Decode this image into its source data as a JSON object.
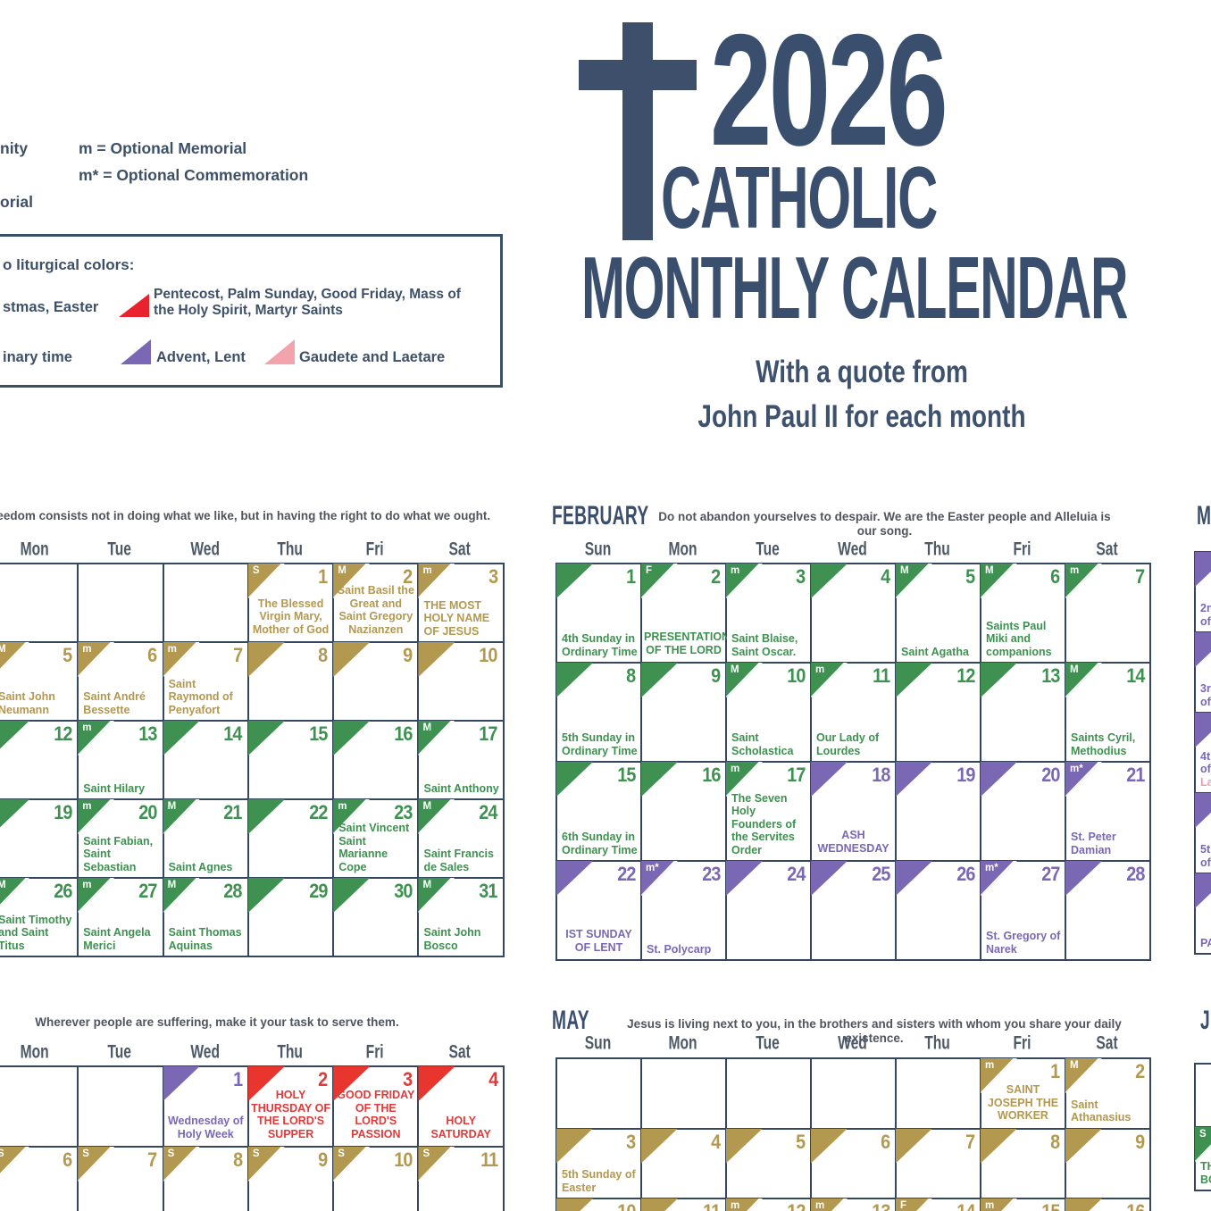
{
  "title": {
    "year": "2026",
    "brand_line1": "CATHOLIC",
    "brand_line2": "MONTHLY CALENDAR",
    "subtitle_line1": "With a quote from",
    "subtitle_line2": "John Paul II for each month"
  },
  "legend": {
    "frag_solemnity": "nity",
    "optional_memorial": "m = Optional Memorial",
    "optional_commemoration": "m* = Optional Commemoration",
    "frag_memorial": "orial",
    "colors_heading": "o liturgical colors:",
    "row1_left_fragment": "stmas, Easter",
    "row1_red_label": "Pentecost, Palm Sunday, Good Friday, Mass of the Holy Spirit, Martyr Saints",
    "row2_left_fragment": "inary time",
    "row2_purple_label": "Advent, Lent",
    "row2_pink_label": "Gaudete and Laetare"
  },
  "liturgical_colors": {
    "green_ordinary_time": "#3e9150",
    "gold_christmas_easter": "#b3984f",
    "purple_advent_lent": "#7a68b4",
    "red_feasts_martyrs": "#e8362e",
    "pink_gaudete_laetare": "#f2a3ac",
    "navy_accent": "#3a4e6e"
  },
  "months": [
    {
      "id": "january",
      "quote": "Freedom consists not in doing what we like, but in having the right to do what we ought.",
      "dow": [
        "Mon",
        "Tue",
        "Wed",
        "Thu",
        "Fri",
        "Sat"
      ],
      "rows": [
        [
          {},
          {},
          {},
          {
            "d": 1,
            "c": "gold",
            "l": "S",
            "t": "The Blessed Virgin Mary, Mother of God",
            "ctr": true
          },
          {
            "d": 2,
            "c": "gold",
            "l": "M",
            "t": "Saint Basil the Great and Saint Gregory Nazianzen",
            "ctr": true
          },
          {
            "d": 3,
            "c": "gold",
            "l": "m",
            "t": "THE MOST HOLY NAME OF JESUS"
          }
        ],
        [
          {
            "d": 5,
            "c": "gold",
            "l": "M",
            "t": "Saint John Neumann"
          },
          {
            "d": 6,
            "c": "gold",
            "l": "m",
            "t": "Saint André Bessette"
          },
          {
            "d": 7,
            "c": "gold",
            "l": "m",
            "t": "Saint Raymond of Penyafort"
          },
          {
            "d": 8,
            "c": "gold"
          },
          {
            "d": 9,
            "c": "gold"
          },
          {
            "d": 10,
            "c": "gold"
          }
        ],
        [
          {
            "d": 12,
            "c": "green"
          },
          {
            "d": 13,
            "c": "green",
            "l": "m",
            "t": "Saint Hilary"
          },
          {
            "d": 14,
            "c": "green"
          },
          {
            "d": 15,
            "c": "green"
          },
          {
            "d": 16,
            "c": "green"
          },
          {
            "d": 17,
            "c": "green",
            "l": "M",
            "t": "Saint Anthony"
          }
        ],
        [
          {
            "d": 19,
            "c": "green"
          },
          {
            "d": 20,
            "c": "green",
            "l": "m",
            "t": "Saint Fabian, Saint Sebastian"
          },
          {
            "d": 21,
            "c": "green",
            "l": "M",
            "t": "Saint Agnes"
          },
          {
            "d": 22,
            "c": "green"
          },
          {
            "d": 23,
            "c": "green",
            "l": "m",
            "t": "Saint Vincent Saint Marianne Cope"
          },
          {
            "d": 24,
            "c": "green",
            "l": "M",
            "t": "Saint Francis de Sales"
          }
        ],
        [
          {
            "d": 26,
            "c": "green",
            "l": "M",
            "t": "Saint Timothy and Saint Titus"
          },
          {
            "d": 27,
            "c": "green",
            "l": "m",
            "t": "Saint Angela Merici"
          },
          {
            "d": 28,
            "c": "green",
            "l": "M",
            "t": "Saint Thomas Aquinas"
          },
          {
            "d": 29,
            "c": "green"
          },
          {
            "d": 30,
            "c": "green"
          },
          {
            "d": 31,
            "c": "green",
            "l": "M",
            "t": "Saint John Bosco"
          }
        ]
      ]
    },
    {
      "id": "february",
      "label": "FEBRUARY",
      "quote": "Do not abandon yourselves to despair. We are the Easter people and Alleluia is our song.",
      "dow": [
        "Sun",
        "Mon",
        "Tue",
        "Wed",
        "Thu",
        "Fri",
        "Sat"
      ],
      "rows": [
        [
          {
            "d": 1,
            "c": "green",
            "t": "4th Sunday in Ordinary Time"
          },
          {
            "d": 2,
            "c": "green",
            "l": "F",
            "t": "PRESENTATION OF THE LORD",
            "ctr": true
          },
          {
            "d": 3,
            "c": "green",
            "l": "m",
            "t": "Saint Blaise, Saint Oscar."
          },
          {
            "d": 4,
            "c": "green"
          },
          {
            "d": 5,
            "c": "green",
            "l": "M",
            "t": "Saint Agatha"
          },
          {
            "d": 6,
            "c": "green",
            "l": "M",
            "t": "Saints Paul Miki and companions"
          },
          {
            "d": 7,
            "c": "green",
            "l": "m"
          }
        ],
        [
          {
            "d": 8,
            "c": "green",
            "t": "5th Sunday in Ordinary Time"
          },
          {
            "d": 9,
            "c": "green"
          },
          {
            "d": 10,
            "c": "green",
            "l": "M",
            "t": "Saint Scholastica"
          },
          {
            "d": 11,
            "c": "green",
            "l": "m",
            "t": "Our Lady of Lourdes"
          },
          {
            "d": 12,
            "c": "green"
          },
          {
            "d": 13,
            "c": "green"
          },
          {
            "d": 14,
            "c": "green",
            "l": "M",
            "t": "Saints Cyril, Methodius"
          }
        ],
        [
          {
            "d": 15,
            "c": "green",
            "t": "6th Sunday in Ordinary Time"
          },
          {
            "d": 16,
            "c": "green"
          },
          {
            "d": 17,
            "c": "green",
            "l": "m",
            "t": "The Seven Holy Founders of the Servites Order"
          },
          {
            "d": 18,
            "c": "purple",
            "t": "ASH WEDNESDAY",
            "ctr": true
          },
          {
            "d": 19,
            "c": "purple"
          },
          {
            "d": 20,
            "c": "purple"
          },
          {
            "d": 21,
            "c": "purple",
            "l": "m*",
            "t": "St. Peter Damian"
          }
        ],
        [
          {
            "d": 22,
            "c": "purple",
            "t": "IST SUNDAY OF LENT",
            "ctr": true
          },
          {
            "d": 23,
            "c": "purple",
            "l": "m*",
            "t": "St. Polycarp"
          },
          {
            "d": 24,
            "c": "purple"
          },
          {
            "d": 25,
            "c": "purple"
          },
          {
            "d": 26,
            "c": "purple"
          },
          {
            "d": 27,
            "c": "purple",
            "l": "m*",
            "t": "St. Gregory of Narek"
          },
          {
            "d": 28,
            "c": "purple"
          }
        ]
      ]
    },
    {
      "id": "march",
      "label": "M",
      "rows": [
        [
          {
            "c": "purple",
            "lines": [
              {
                "s": "2n"
              },
              {
                "s": "of"
              }
            ]
          }
        ],
        [
          {
            "c": "purple",
            "lines": [
              {
                "s": "3r"
              },
              {
                "s": "of"
              }
            ]
          }
        ],
        [
          {
            "c": "purple",
            "lines": [
              {
                "s": "4t"
              },
              {
                "s": "of"
              },
              {
                "s": "La",
                "p": 1
              }
            ]
          }
        ],
        [
          {
            "c": "purple",
            "lines": [
              {
                "s": "5t"
              },
              {
                "s": "of"
              }
            ]
          }
        ],
        [
          {
            "c": "purple",
            "lines": [
              {
                "s": "PA"
              }
            ]
          }
        ]
      ]
    },
    {
      "id": "april",
      "quote": "Wherever people are suffering, make it your task to serve them.",
      "dow": [
        "Mon",
        "Tue",
        "Wed",
        "Thu",
        "Fri",
        "Sat"
      ],
      "rows": [
        [
          {},
          {},
          {
            "d": 1,
            "c": "purple",
            "t": "Wednesday of Holy Week",
            "ctr": true
          },
          {
            "d": 2,
            "c": "red",
            "t": "HOLY THURSDAY OF THE LORD'S SUPPER",
            "ctr": true
          },
          {
            "d": 3,
            "c": "red",
            "t": "GOOD FRIDAY OF THE LORD'S PASSION",
            "ctr": true
          },
          {
            "d": 4,
            "c": "red",
            "t": "HOLY SATURDAY",
            "ctr": true
          }
        ],
        [
          {
            "d": 6,
            "c": "gold",
            "l": "S"
          },
          {
            "d": 7,
            "c": "gold",
            "l": "S"
          },
          {
            "d": 8,
            "c": "gold",
            "l": "S"
          },
          {
            "d": 9,
            "c": "gold",
            "l": "S"
          },
          {
            "d": 10,
            "c": "gold",
            "l": "S"
          },
          {
            "d": 11,
            "c": "gold",
            "l": "S"
          }
        ]
      ]
    },
    {
      "id": "may",
      "label": "MAY",
      "quote": "Jesus is living next to you, in the brothers and sisters with whom you share your daily existence.",
      "dow": [
        "Sun",
        "Mon",
        "Tue",
        "Wed",
        "Thu",
        "Fri",
        "Sat"
      ],
      "rows": [
        [
          {},
          {},
          {},
          {},
          {},
          {
            "d": 1,
            "c": "gold",
            "l": "m",
            "t": "SAINT JOSEPH THE WORKER",
            "ctr": true
          },
          {
            "d": 2,
            "c": "gold",
            "l": "M",
            "t": "Saint Athanasius"
          }
        ],
        [
          {
            "d": 3,
            "c": "gold",
            "t": "5th Sunday of Easter"
          },
          {
            "d": 4,
            "c": "gold"
          },
          {
            "d": 5,
            "c": "gold"
          },
          {
            "d": 6,
            "c": "gold"
          },
          {
            "d": 7,
            "c": "gold"
          },
          {
            "d": 8,
            "c": "gold"
          },
          {
            "d": 9,
            "c": "gold"
          }
        ],
        [
          {
            "d": 10,
            "c": "gold"
          },
          {
            "d": 11,
            "c": "gold"
          },
          {
            "d": 12,
            "c": "gold",
            "l": "m"
          },
          {
            "d": 13,
            "c": "gold",
            "l": "m"
          },
          {
            "d": 14,
            "c": "gold",
            "l": "F"
          },
          {
            "d": 15,
            "c": "gold",
            "l": "m"
          },
          {
            "d": 16,
            "c": "gold"
          }
        ]
      ]
    },
    {
      "id": "june",
      "label": "J",
      "rows": [
        [
          {}
        ],
        [
          {
            "c": "green",
            "l": "S",
            "lines": [
              {
                "s": "TH"
              },
              {
                "s": "BO"
              }
            ]
          }
        ]
      ]
    }
  ]
}
